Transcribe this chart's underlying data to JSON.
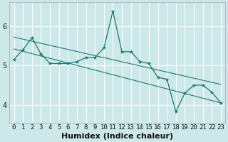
{
  "title": "",
  "xlabel": "Humidex (Indice chaleur)",
  "ylabel": "",
  "bg_color": "#cce8e8",
  "grid_color": "#ffffff",
  "line_color": "#1a7a6e",
  "xlim": [
    -0.5,
    23.5
  ],
  "ylim": [
    3.55,
    6.6
  ],
  "yticks": [
    4,
    5,
    6
  ],
  "xticks": [
    0,
    1,
    2,
    3,
    4,
    5,
    6,
    7,
    8,
    9,
    10,
    11,
    12,
    13,
    14,
    15,
    16,
    17,
    18,
    19,
    20,
    21,
    22,
    23
  ],
  "xtick_labels": [
    "0",
    "1",
    "2",
    "3",
    "4",
    "5",
    "6",
    "7",
    "8",
    "9",
    "10",
    "11",
    "12",
    "13",
    "14",
    "15",
    "16",
    "17",
    "18",
    "19",
    "20",
    "21",
    "22",
    "23"
  ],
  "series1_x": [
    0,
    1,
    2,
    3,
    4,
    5,
    6,
    7,
    8,
    9,
    10,
    11,
    12,
    13,
    14,
    15,
    16,
    17,
    18,
    19,
    20,
    21,
    22,
    23
  ],
  "series1_y": [
    5.15,
    5.4,
    5.7,
    5.3,
    5.05,
    5.05,
    5.05,
    5.1,
    5.2,
    5.2,
    5.45,
    6.38,
    5.35,
    5.35,
    5.1,
    5.05,
    4.7,
    4.65,
    3.83,
    4.3,
    4.5,
    4.5,
    4.32,
    4.05
  ],
  "trend1_x": [
    0,
    23
  ],
  "trend1_y": [
    5.72,
    4.52
  ],
  "trend2_x": [
    0,
    23
  ],
  "trend2_y": [
    5.42,
    4.05
  ],
  "xlabel_fontsize": 8,
  "tick_fontsize": 6.5,
  "marker_size": 3.5
}
